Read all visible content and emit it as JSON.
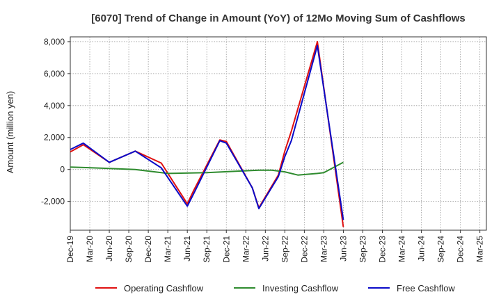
{
  "chart_data": {
    "type": "line",
    "title": "[6070]  Trend of Change in Amount (YoY) of 12Mo Moving Sum of Cashflows",
    "xlabel": "",
    "ylabel": "Amount (million yen)",
    "ylim": [
      -3800,
      8300
    ],
    "yticks": [
      -2000,
      0,
      2000,
      4000,
      6000,
      8000
    ],
    "ytick_labels": [
      "-2,000",
      "0",
      "2,000",
      "4,000",
      "6,000",
      "8,000"
    ],
    "x_start": "Dec-19",
    "x_count_months": 64,
    "xtick_labels": [
      "Dec-19",
      "Mar-20",
      "Jun-20",
      "Sep-20",
      "Dec-20",
      "Mar-21",
      "Jun-21",
      "Sep-21",
      "Dec-21",
      "Mar-22",
      "Jun-22",
      "Sep-22",
      "Dec-22",
      "Mar-23",
      "Jun-23",
      "Sep-23",
      "Dec-23",
      "Mar-24",
      "Jun-24",
      "Sep-24",
      "Dec-24",
      "Mar-25"
    ],
    "grid": true,
    "legend_position": "bottom",
    "series": [
      {
        "name": "Operating Cashflow",
        "color": "#e01010",
        "points": [
          [
            0,
            1100
          ],
          [
            2,
            1550
          ],
          [
            6,
            450
          ],
          [
            10,
            1150
          ],
          [
            14,
            400
          ],
          [
            18,
            -2150
          ],
          [
            19,
            -1300
          ],
          [
            23,
            1850
          ],
          [
            24,
            1750
          ],
          [
            28,
            -1150
          ],
          [
            29,
            -2400
          ],
          [
            32,
            -350
          ],
          [
            33,
            1150
          ],
          [
            34,
            2400
          ],
          [
            38,
            8000
          ],
          [
            42,
            -3600
          ]
        ]
      },
      {
        "name": "Investing Cashflow",
        "color": "#2e8b2e",
        "points": [
          [
            0,
            150
          ],
          [
            5,
            80
          ],
          [
            10,
            0
          ],
          [
            15,
            -250
          ],
          [
            21,
            -200
          ],
          [
            26,
            -100
          ],
          [
            29,
            -50
          ],
          [
            31,
            -50
          ],
          [
            33,
            -150
          ],
          [
            35,
            -350
          ],
          [
            38,
            -250
          ],
          [
            39,
            -200
          ],
          [
            42,
            450
          ]
        ]
      },
      {
        "name": "Free Cashflow",
        "color": "#0a0ac8",
        "points": [
          [
            0,
            1250
          ],
          [
            2,
            1650
          ],
          [
            6,
            450
          ],
          [
            10,
            1150
          ],
          [
            14,
            100
          ],
          [
            18,
            -2300
          ],
          [
            19,
            -1500
          ],
          [
            23,
            1800
          ],
          [
            24,
            1650
          ],
          [
            28,
            -1150
          ],
          [
            29,
            -2450
          ],
          [
            32,
            -450
          ],
          [
            33,
            800
          ],
          [
            34,
            1800
          ],
          [
            38,
            7750
          ],
          [
            42,
            -3150
          ]
        ]
      }
    ]
  }
}
